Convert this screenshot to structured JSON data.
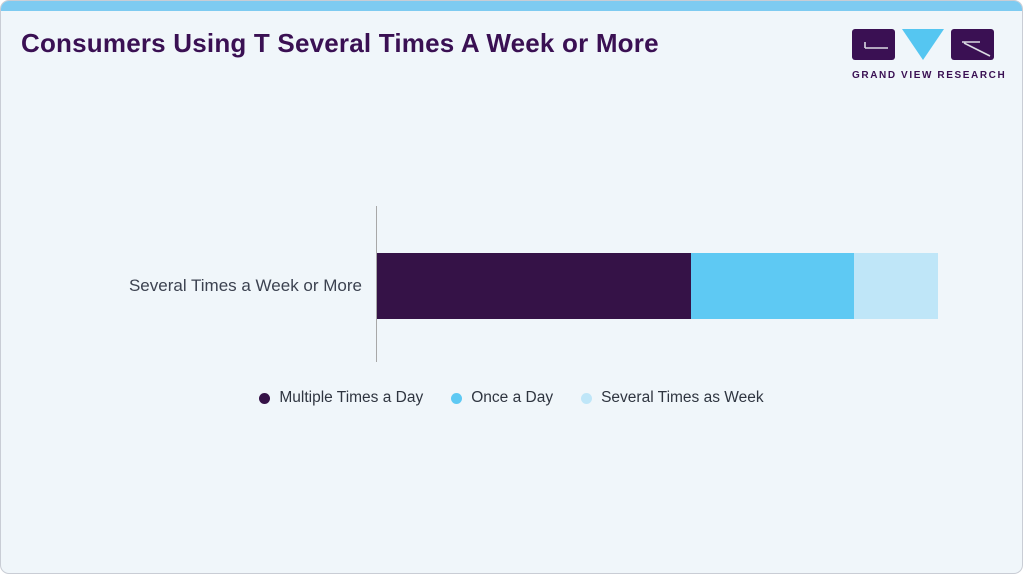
{
  "card": {
    "title": "Consumers Using T Several Times A Week or More",
    "logo": {
      "text": "GRAND VIEW RESEARCH"
    }
  },
  "colors": {
    "accent_bar": "#7ecbf1",
    "card_background": "#f0f6fa",
    "card_border": "#c9cdd5",
    "title": "#3a1053",
    "axis_line": "#a8a8a8",
    "category_label": "#3c4250",
    "legend_text": "#2f3540",
    "logo_purple": "#3a1053",
    "logo_blue": "#55c6f1"
  },
  "chart_data": {
    "type": "bar",
    "orientation": "horizontal",
    "stacked": true,
    "title": "Consumers Using T Several Times A Week or More",
    "categories": [
      "Several Times a Week or More"
    ],
    "series": [
      {
        "name": "Multiple Times a Day",
        "values": [
          56
        ],
        "color": "#351247"
      },
      {
        "name": "Once a Day",
        "values": [
          29
        ],
        "color": "#5ec9f3"
      },
      {
        "name": "Several Times as Week",
        "values": [
          15
        ],
        "color": "#bfe6f8"
      }
    ],
    "xlim": [
      0,
      100
    ],
    "legend_position": "bottom",
    "grid": false
  }
}
